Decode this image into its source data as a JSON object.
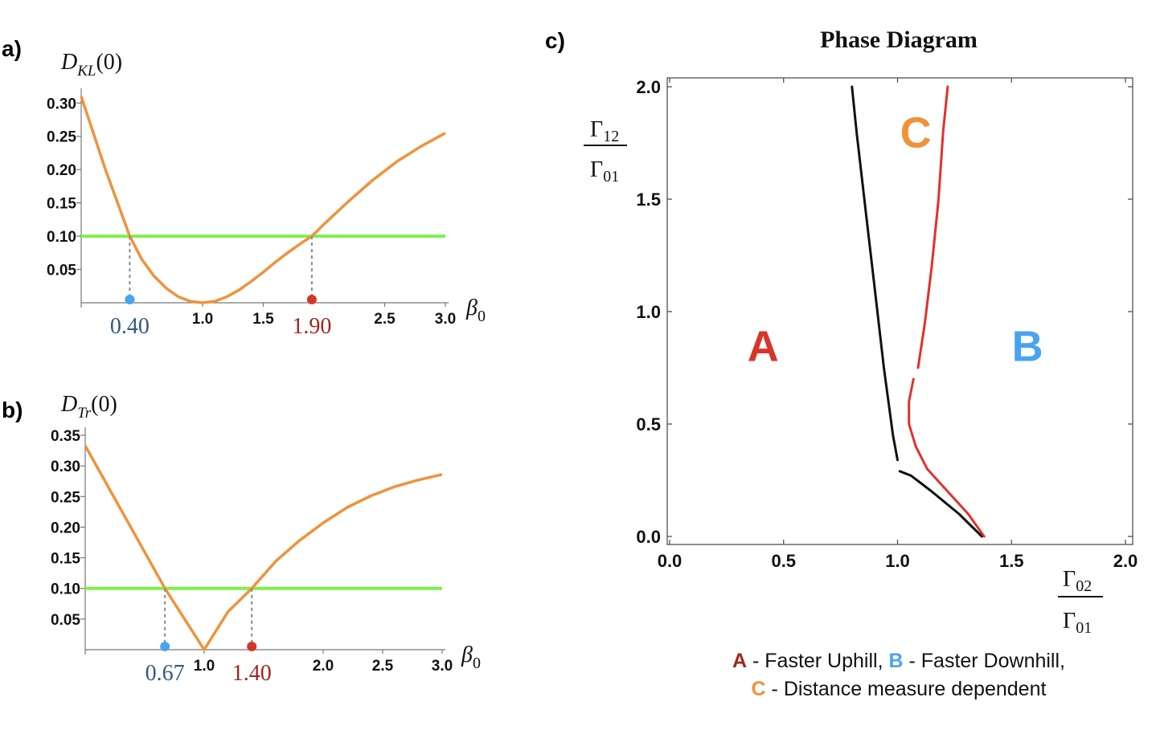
{
  "colors": {
    "curve": "#f0923a",
    "threshold": "#7ef04a",
    "left_marker": "#4aa3f0",
    "right_marker": "#d8352a",
    "left_text": "#2f5a86",
    "right_text": "#a0261c",
    "region_a": "#d8352a",
    "region_b": "#4aa3f0",
    "region_c": "#f0923a",
    "boundary_black": "#111111",
    "boundary_red": "#e0322a"
  },
  "chart_data": [
    {
      "id": "a",
      "type": "line",
      "panel_label": "a)",
      "ylabel": {
        "main": "D",
        "sub": "KL",
        "arg": "(0)"
      },
      "xlabel": {
        "main": "β",
        "sub": "0"
      },
      "xlim": [
        0.0,
        3.0
      ],
      "ylim": [
        0.0,
        0.31
      ],
      "xticks": [
        1.0,
        1.5,
        2.5,
        3.0
      ],
      "xtick_labels": [
        "1.0",
        "1.5",
        "2.5",
        "3.0"
      ],
      "yticks": [
        0.05,
        0.1,
        0.15,
        0.2,
        0.25,
        0.3
      ],
      "ytick_labels": [
        "0.05",
        "0.10",
        "0.15",
        "0.20",
        "0.25",
        "0.30"
      ],
      "series": [
        {
          "name": "D_KL(0)",
          "x": [
            0.0,
            0.1,
            0.2,
            0.3,
            0.4,
            0.5,
            0.6,
            0.7,
            0.8,
            0.9,
            1.0,
            1.1,
            1.2,
            1.3,
            1.4,
            1.5,
            1.6,
            1.7,
            1.8,
            1.9,
            2.0,
            2.2,
            2.4,
            2.6,
            2.8,
            3.0
          ],
          "y": [
            0.31,
            0.255,
            0.2,
            0.15,
            0.1,
            0.065,
            0.04,
            0.022,
            0.009,
            0.002,
            0.0,
            0.002,
            0.009,
            0.019,
            0.032,
            0.046,
            0.061,
            0.075,
            0.088,
            0.1,
            0.118,
            0.152,
            0.184,
            0.212,
            0.235,
            0.255
          ]
        }
      ],
      "threshold": 0.1,
      "crossings": [
        {
          "x": 0.4,
          "label": "0.40",
          "side": "left"
        },
        {
          "x": 1.9,
          "label": "1.90",
          "side": "right"
        }
      ]
    },
    {
      "id": "b",
      "type": "line",
      "panel_label": "b)",
      "ylabel": {
        "main": "D",
        "sub": "Tr",
        "arg": "(0)"
      },
      "xlabel": {
        "main": "β",
        "sub": "0"
      },
      "xlim": [
        0.0,
        3.0
      ],
      "ylim": [
        0.0,
        0.35
      ],
      "xticks": [
        1.0,
        2.0,
        2.5,
        3.0
      ],
      "xtick_labels": [
        "1.0",
        "2.0",
        "2.5",
        "3.0"
      ],
      "yticks": [
        0.05,
        0.1,
        0.15,
        0.2,
        0.25,
        0.3,
        0.35
      ],
      "ytick_labels": [
        "0.05",
        "0.10",
        "0.15",
        "0.20",
        "0.25",
        "0.30",
        "0.35"
      ],
      "series": [
        {
          "name": "D_Tr(0)",
          "x": [
            0.0,
            0.67,
            1.0,
            1.2,
            1.4,
            1.6,
            1.8,
            2.0,
            2.2,
            2.4,
            2.6,
            2.8,
            3.0
          ],
          "y": [
            0.333,
            0.1,
            0.0,
            0.062,
            0.1,
            0.144,
            0.178,
            0.207,
            0.232,
            0.251,
            0.266,
            0.277,
            0.286
          ]
        }
      ],
      "threshold": 0.1,
      "crossings": [
        {
          "x": 0.67,
          "label": "0.67",
          "side": "left"
        },
        {
          "x": 1.4,
          "label": "1.40",
          "side": "right"
        }
      ]
    },
    {
      "id": "c",
      "type": "line",
      "panel_label": "c)",
      "title": "Phase Diagram",
      "xlabel": {
        "num": "Γ",
        "num_sub": "02",
        "den": "Γ",
        "den_sub": "01"
      },
      "ylabel": {
        "num": "Γ",
        "num_sub": "12",
        "den": "Γ",
        "den_sub": "01"
      },
      "xlim": [
        0.0,
        2.0
      ],
      "ylim": [
        0.0,
        2.0
      ],
      "xticks": [
        0.0,
        0.5,
        1.0,
        1.5,
        2.0
      ],
      "xtick_labels": [
        "0.0",
        "0.5",
        "1.0",
        "1.5",
        "2.0"
      ],
      "yticks": [
        0.0,
        0.5,
        1.0,
        1.5,
        2.0
      ],
      "ytick_labels": [
        "0.0",
        "0.5",
        "1.0",
        "1.5",
        "2.0"
      ],
      "series": [
        {
          "name": "boundary-black-upper",
          "color": "black",
          "x": [
            0.8,
            0.82,
            0.86,
            0.9,
            0.94,
            0.98,
            1.0
          ],
          "y": [
            2.0,
            1.8,
            1.45,
            1.1,
            0.75,
            0.45,
            0.34
          ]
        },
        {
          "name": "boundary-black-lower",
          "color": "black",
          "x": [
            1.01,
            1.06,
            1.15,
            1.27,
            1.37
          ],
          "y": [
            0.29,
            0.27,
            0.2,
            0.1,
            0.0
          ]
        },
        {
          "name": "boundary-red-upper",
          "color": "red",
          "x": [
            1.22,
            1.2,
            1.18,
            1.15,
            1.12,
            1.09
          ],
          "y": [
            2.0,
            1.8,
            1.5,
            1.2,
            0.95,
            0.75
          ]
        },
        {
          "name": "boundary-red-lower",
          "color": "red",
          "x": [
            1.07,
            1.05,
            1.05,
            1.08,
            1.13,
            1.22,
            1.31,
            1.38
          ],
          "y": [
            0.7,
            0.6,
            0.5,
            0.4,
            0.3,
            0.2,
            0.1,
            0.0
          ]
        }
      ],
      "regions": [
        {
          "label": "A",
          "x": 0.41,
          "y": 0.78
        },
        {
          "label": "B",
          "x": 1.57,
          "y": 0.78
        },
        {
          "label": "C",
          "x": 1.08,
          "y": 1.73
        }
      ]
    }
  ],
  "legend": {
    "line1": [
      {
        "key": "A",
        "text": " - Faster Uphill, "
      },
      {
        "key": "B",
        "text": " - Faster Downhill,"
      }
    ],
    "line2": [
      {
        "key": "C",
        "text": " - Distance measure dependent"
      }
    ]
  }
}
